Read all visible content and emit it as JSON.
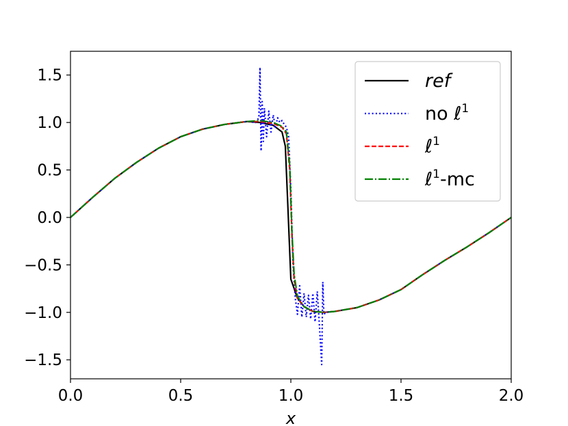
{
  "chart_data": {
    "type": "line",
    "title": "",
    "xlabel": "x",
    "ylabel": "",
    "xlim": [
      0,
      2
    ],
    "ylim": [
      -1.7,
      1.75
    ],
    "xticks": [
      0.0,
      0.5,
      1.0,
      1.5,
      2.0
    ],
    "xtick_labels": [
      "0.0",
      "0.5",
      "1.0",
      "1.5",
      "2.0"
    ],
    "yticks": [
      -1.5,
      -1.0,
      -0.5,
      0.0,
      0.5,
      1.0,
      1.5
    ],
    "ytick_labels": [
      "−1.5",
      "−1.0",
      "−0.5",
      "0.0",
      "0.5",
      "1.0",
      "1.5"
    ],
    "grid": false,
    "legend_position": "top-right",
    "series": [
      {
        "name": "ref",
        "label_parts": [
          {
            "text": "ref",
            "italic": true
          }
        ],
        "color": "#000000",
        "style": "solid",
        "x": [
          0,
          0.1,
          0.2,
          0.3,
          0.4,
          0.5,
          0.6,
          0.7,
          0.8,
          0.86,
          0.92,
          0.96,
          0.975,
          0.985,
          1.0,
          1.03,
          1.06,
          1.1,
          1.15,
          1.2,
          1.3,
          1.4,
          1.5,
          1.6,
          1.7,
          1.8,
          1.9,
          2.0
        ],
        "y": [
          0,
          0.21,
          0.41,
          0.58,
          0.73,
          0.85,
          0.93,
          0.98,
          1.01,
          1.0,
          0.97,
          0.9,
          0.75,
          0.2,
          -0.65,
          -0.85,
          -0.94,
          -0.99,
          -1.0,
          -0.99,
          -0.95,
          -0.87,
          -0.76,
          -0.6,
          -0.45,
          -0.31,
          -0.16,
          0.0
        ]
      },
      {
        "name": "no ℓ1",
        "label_parts": [
          {
            "text": "no "
          },
          {
            "text": "ℓ"
          },
          {
            "text": "1",
            "sup": true
          }
        ],
        "color": "#0000ff",
        "style": "dotted",
        "x": [
          0,
          0.1,
          0.2,
          0.3,
          0.4,
          0.5,
          0.6,
          0.7,
          0.8,
          0.84,
          0.855,
          0.86,
          0.865,
          0.87,
          0.875,
          0.88,
          0.89,
          0.9,
          0.91,
          0.92,
          0.93,
          0.94,
          0.95,
          0.96,
          0.97,
          0.98,
          0.99,
          1.0,
          1.01,
          1.02,
          1.03,
          1.04,
          1.05,
          1.06,
          1.07,
          1.08,
          1.09,
          1.1,
          1.11,
          1.12,
          1.13,
          1.14,
          1.145,
          1.15,
          1.16,
          1.2,
          1.3,
          1.4,
          1.5,
          1.6,
          1.7,
          1.8,
          1.9,
          2.0
        ],
        "y": [
          0,
          0.21,
          0.41,
          0.58,
          0.73,
          0.85,
          0.93,
          0.98,
          1.01,
          1.0,
          1.05,
          1.58,
          0.7,
          1.22,
          0.8,
          1.15,
          0.85,
          1.12,
          0.9,
          1.08,
          0.95,
          1.05,
          1.0,
          1.02,
          0.98,
          0.95,
          0.85,
          0.3,
          -0.5,
          -0.85,
          -1.02,
          -0.72,
          -1.05,
          -0.8,
          -1.05,
          -0.82,
          -1.07,
          -0.8,
          -1.1,
          -0.78,
          -1.15,
          -1.55,
          -0.68,
          -1.02,
          -1.0,
          -0.99,
          -0.95,
          -0.87,
          -0.76,
          -0.6,
          -0.45,
          -0.31,
          -0.16,
          0.0
        ]
      },
      {
        "name": "ℓ1",
        "label_parts": [
          {
            "text": "ℓ"
          },
          {
            "text": "1",
            "sup": true
          }
        ],
        "color": "#ff0000",
        "style": "dashed",
        "x": [
          0,
          0.1,
          0.2,
          0.3,
          0.4,
          0.5,
          0.6,
          0.7,
          0.8,
          0.86,
          0.92,
          0.96,
          0.98,
          0.995,
          1.005,
          1.015,
          1.03,
          1.06,
          1.1,
          1.15,
          1.2,
          1.3,
          1.4,
          1.5,
          1.6,
          1.7,
          1.8,
          1.9,
          2.0
        ],
        "y": [
          0,
          0.21,
          0.41,
          0.58,
          0.73,
          0.85,
          0.93,
          0.98,
          1.01,
          1.01,
          0.99,
          0.95,
          0.88,
          0.5,
          -0.2,
          -0.65,
          -0.85,
          -0.94,
          -0.99,
          -1.0,
          -0.99,
          -0.95,
          -0.87,
          -0.76,
          -0.6,
          -0.45,
          -0.31,
          -0.16,
          0.0
        ]
      },
      {
        "name": "ℓ1-mc",
        "label_parts": [
          {
            "text": "ℓ"
          },
          {
            "text": "1",
            "sup": true
          },
          {
            "text": "-mc"
          }
        ],
        "color": "#008000",
        "style": "dashdot",
        "x": [
          0,
          0.1,
          0.2,
          0.3,
          0.4,
          0.5,
          0.6,
          0.7,
          0.8,
          0.86,
          0.92,
          0.96,
          0.98,
          0.995,
          1.005,
          1.015,
          1.03,
          1.06,
          1.1,
          1.15,
          1.2,
          1.3,
          1.4,
          1.5,
          1.6,
          1.7,
          1.8,
          1.9,
          2.0
        ],
        "y": [
          0,
          0.21,
          0.41,
          0.58,
          0.73,
          0.85,
          0.93,
          0.98,
          1.01,
          1.02,
          1.0,
          0.96,
          0.9,
          0.55,
          -0.15,
          -0.6,
          -0.83,
          -0.94,
          -0.99,
          -1.0,
          -0.99,
          -0.95,
          -0.87,
          -0.76,
          -0.6,
          -0.45,
          -0.31,
          -0.16,
          0.0
        ]
      }
    ]
  }
}
